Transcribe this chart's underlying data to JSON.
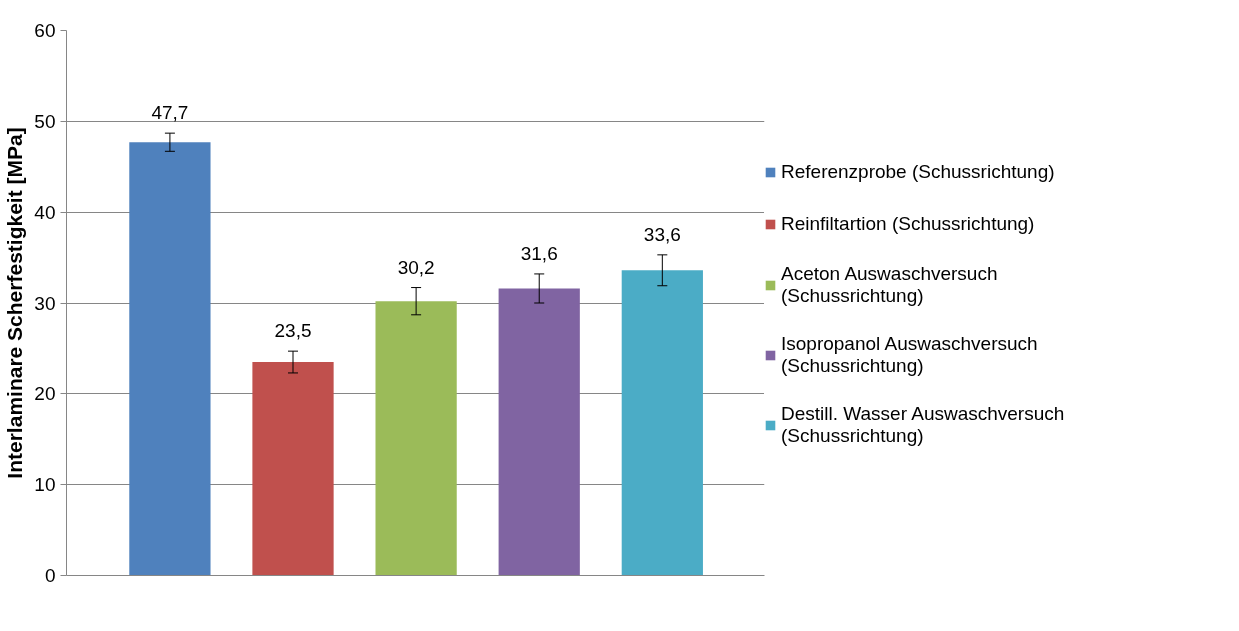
{
  "chart_data": {
    "type": "bar",
    "ylabel": "Interlaminare Scherfestigkeit [MPa]",
    "categories": [
      null
    ],
    "series": [
      {
        "name": "Referenzprobe (Schussrichtung)",
        "color": "#4f81bd",
        "values": [
          47.7
        ],
        "errors": [
          1.0
        ],
        "value_labels": [
          "47,7"
        ]
      },
      {
        "name": "Reinfiltartion (Schussrichtung)",
        "color": "#c0504d",
        "values": [
          23.5
        ],
        "errors": [
          1.2
        ],
        "value_labels": [
          "23,5"
        ]
      },
      {
        "name": "Aceton Auswaschversuch (Schussrichtung)",
        "color": "#9bbb59",
        "values": [
          30.2
        ],
        "errors": [
          1.5
        ],
        "value_labels": [
          "30,2"
        ]
      },
      {
        "name": "Isopropanol Auswaschversuch (Schussrichtung)",
        "color": "#8064a2",
        "values": [
          31.6
        ],
        "errors": [
          1.6
        ],
        "value_labels": [
          "31,6"
        ]
      },
      {
        "name": "Destill. Wasser Auswaschversuch (Schussrichtung)",
        "color": "#4bacc6",
        "values": [
          33.6
        ],
        "errors": [
          1.7
        ],
        "value_labels": [
          "33,6"
        ]
      }
    ],
    "ylim": [
      0,
      60
    ],
    "yticks": [
      0,
      10,
      20,
      30,
      40,
      50,
      60
    ],
    "grid": "y",
    "legend": "right"
  }
}
